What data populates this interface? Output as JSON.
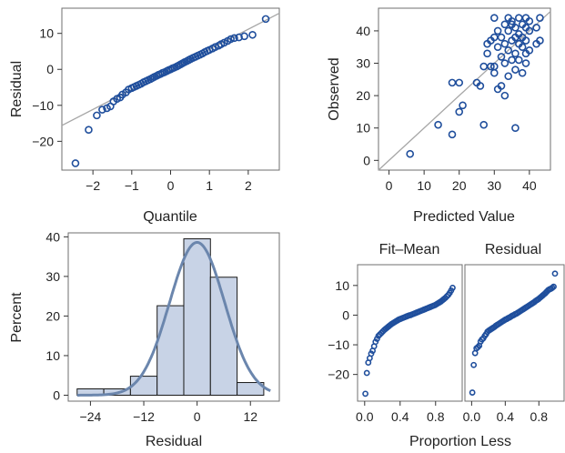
{
  "colors": {
    "marker": "#1f4e9c",
    "reference_line": "#a6a6a6",
    "bar_fill": "#c8d3e6",
    "density_curve": "#6b86ad"
  },
  "chart_data": [
    {
      "id": "qq",
      "type": "scatter",
      "xlabel": "Quantile",
      "ylabel": "Residual",
      "xlim": [
        -2.8,
        2.8
      ],
      "ylim": [
        -28,
        17
      ],
      "xticks": [
        -2,
        -1,
        0,
        1,
        2
      ],
      "yticks": [
        -20,
        -10,
        0,
        10
      ],
      "reference_line": [
        [
          -2.8,
          -15.6
        ],
        [
          2.8,
          15.6
        ]
      ],
      "points": [
        [
          -2.45,
          -26.1
        ],
        [
          -2.11,
          -16.8
        ],
        [
          -1.9,
          -12.8
        ],
        [
          -1.76,
          -11.2
        ],
        [
          -1.64,
          -10.8
        ],
        [
          -1.55,
          -10.3
        ],
        [
          -1.47,
          -8.9
        ],
        [
          -1.38,
          -8.2
        ],
        [
          -1.3,
          -7.8
        ],
        [
          -1.24,
          -7.0
        ],
        [
          -1.15,
          -6.4
        ],
        [
          -1.08,
          -5.6
        ],
        [
          -1.0,
          -5.2
        ],
        [
          -0.94,
          -4.9
        ],
        [
          -0.88,
          -4.6
        ],
        [
          -0.82,
          -4.3
        ],
        [
          -0.76,
          -4.0
        ],
        [
          -0.7,
          -3.6
        ],
        [
          -0.64,
          -3.3
        ],
        [
          -0.58,
          -3.0
        ],
        [
          -0.52,
          -2.7
        ],
        [
          -0.47,
          -2.4
        ],
        [
          -0.42,
          -2.1
        ],
        [
          -0.36,
          -1.8
        ],
        [
          -0.31,
          -1.5
        ],
        [
          -0.26,
          -1.3
        ],
        [
          -0.21,
          -1.0
        ],
        [
          -0.16,
          -0.8
        ],
        [
          -0.1,
          -0.5
        ],
        [
          -0.05,
          -0.2
        ],
        [
          0.0,
          0.0
        ],
        [
          0.05,
          0.3
        ],
        [
          0.1,
          0.5
        ],
        [
          0.16,
          0.8
        ],
        [
          0.21,
          1.1
        ],
        [
          0.26,
          1.4
        ],
        [
          0.31,
          1.7
        ],
        [
          0.36,
          2.0
        ],
        [
          0.42,
          2.3
        ],
        [
          0.47,
          2.6
        ],
        [
          0.52,
          2.9
        ],
        [
          0.58,
          3.2
        ],
        [
          0.64,
          3.5
        ],
        [
          0.7,
          3.8
        ],
        [
          0.76,
          4.1
        ],
        [
          0.82,
          4.4
        ],
        [
          0.88,
          4.8
        ],
        [
          0.94,
          5.1
        ],
        [
          1.0,
          5.4
        ],
        [
          1.08,
          5.8
        ],
        [
          1.15,
          6.2
        ],
        [
          1.24,
          6.6
        ],
        [
          1.3,
          7.0
        ],
        [
          1.38,
          7.4
        ],
        [
          1.47,
          7.9
        ],
        [
          1.55,
          8.4
        ],
        [
          1.64,
          8.7
        ],
        [
          1.76,
          8.9
        ],
        [
          1.9,
          9.2
        ],
        [
          2.11,
          9.6
        ],
        [
          2.45,
          14.0
        ]
      ]
    },
    {
      "id": "obs_pred",
      "type": "scatter",
      "xlabel": "Predicted Value",
      "ylabel": "Observed",
      "xlim": [
        -3,
        46
      ],
      "ylim": [
        -3,
        47
      ],
      "xticks": [
        0,
        10,
        20,
        30,
        40
      ],
      "yticks": [
        0,
        10,
        20,
        30,
        40
      ],
      "reference_line": [
        [
          -3,
          -3
        ],
        [
          46,
          46
        ]
      ],
      "points": [
        [
          6,
          2
        ],
        [
          14,
          11
        ],
        [
          18,
          8
        ],
        [
          18,
          24
        ],
        [
          20,
          15
        ],
        [
          20,
          24
        ],
        [
          21,
          17
        ],
        [
          25,
          24
        ],
        [
          26,
          23
        ],
        [
          27,
          11
        ],
        [
          27,
          29
        ],
        [
          28,
          33
        ],
        [
          28,
          36
        ],
        [
          29,
          29
        ],
        [
          29,
          37
        ],
        [
          30,
          38
        ],
        [
          30,
          27
        ],
        [
          30,
          29
        ],
        [
          30,
          44
        ],
        [
          31,
          22
        ],
        [
          31,
          35
        ],
        [
          31,
          40
        ],
        [
          32,
          23
        ],
        [
          32,
          32
        ],
        [
          32,
          38
        ],
        [
          33,
          20
        ],
        [
          33,
          30
        ],
        [
          33,
          36
        ],
        [
          33,
          42
        ],
        [
          34,
          26
        ],
        [
          34,
          34
        ],
        [
          34,
          40
        ],
        [
          34,
          44
        ],
        [
          35,
          31
        ],
        [
          35,
          37
        ],
        [
          35,
          42
        ],
        [
          35,
          43
        ],
        [
          36,
          10
        ],
        [
          36,
          28
        ],
        [
          36,
          33
        ],
        [
          36,
          38
        ],
        [
          36,
          41
        ],
        [
          37,
          31
        ],
        [
          37,
          36
        ],
        [
          37,
          39
        ],
        [
          37,
          44
        ],
        [
          38,
          27
        ],
        [
          38,
          35
        ],
        [
          38,
          38
        ],
        [
          38,
          42
        ],
        [
          39,
          30
        ],
        [
          39,
          33
        ],
        [
          39,
          37
        ],
        [
          39,
          41
        ],
        [
          39,
          44
        ],
        [
          40,
          34
        ],
        [
          40,
          40
        ],
        [
          40,
          43
        ],
        [
          42,
          36
        ],
        [
          42,
          41
        ],
        [
          43,
          37
        ],
        [
          43,
          44
        ]
      ]
    },
    {
      "id": "hist",
      "type": "bar",
      "xlabel": "Residual",
      "ylabel": "Percent",
      "xlim": [
        -29,
        18.5
      ],
      "ylim": [
        -1.5,
        41
      ],
      "xticks": [
        -24,
        -12,
        0,
        12
      ],
      "yticks": [
        0,
        10,
        20,
        30,
        40
      ],
      "bins": [
        {
          "start": -27,
          "end": -21,
          "value": 1.6
        },
        {
          "start": -21,
          "end": -15,
          "value": 1.6
        },
        {
          "start": -15,
          "end": -9,
          "value": 4.8
        },
        {
          "start": -9,
          "end": -3,
          "value": 22.6
        },
        {
          "start": -3,
          "end": 3,
          "value": 39.5
        },
        {
          "start": 3,
          "end": 9,
          "value": 29.8
        },
        {
          "start": 9,
          "end": 15,
          "value": 3.2
        }
      ],
      "density_curve": {
        "type": "normal",
        "mean": 0,
        "sd": 6.2,
        "peak": 38.6,
        "x_range": [
          -27,
          16.5
        ]
      }
    },
    {
      "id": "fit_mean",
      "type": "scatter",
      "title": "Fit–Mean",
      "xlabel": "",
      "ylabel": "",
      "xlim": [
        -0.08,
        1.1
      ],
      "ylim": [
        -29,
        17
      ],
      "xticks": [
        "0.0",
        "0.4",
        "0.8"
      ],
      "yticks": [
        -20,
        -10,
        0,
        10
      ],
      "values_sorted": [
        -26.5,
        -19.5,
        -16.0,
        -14.5,
        -13.0,
        -12.0,
        -10.5,
        -9.0,
        -8.0,
        -7.0,
        -6.5,
        -6.0,
        -5.5,
        -5.0,
        -4.6,
        -4.2,
        -3.8,
        -3.4,
        -3.0,
        -2.7,
        -2.4,
        -2.1,
        -1.8,
        -1.5,
        -1.3,
        -1.1,
        -0.9,
        -0.7,
        -0.5,
        -0.3,
        -0.1,
        0.0,
        0.2,
        0.4,
        0.6,
        0.8,
        1.0,
        1.2,
        1.4,
        1.6,
        1.8,
        2.0,
        2.2,
        2.4,
        2.6,
        2.8,
        3.0,
        3.2,
        3.4,
        3.7,
        4.0,
        4.3,
        4.6,
        5.0,
        5.4,
        5.8,
        6.3,
        6.8,
        7.5,
        8.3,
        9.2
      ]
    },
    {
      "id": "residual_spread",
      "type": "scatter",
      "title": "Residual",
      "xlabel": "",
      "ylabel": "",
      "xlim": [
        -0.08,
        1.1
      ],
      "ylim": [
        -29,
        17
      ],
      "xticks": [
        "0.0",
        "0.4",
        "0.8"
      ],
      "values_sorted": [
        -26.1,
        -16.8,
        -12.8,
        -11.2,
        -10.8,
        -10.3,
        -8.9,
        -8.2,
        -7.8,
        -7.0,
        -6.4,
        -5.6,
        -5.2,
        -4.9,
        -4.6,
        -4.3,
        -4.0,
        -3.6,
        -3.3,
        -3.0,
        -2.7,
        -2.4,
        -2.1,
        -1.8,
        -1.5,
        -1.3,
        -1.0,
        -0.8,
        -0.5,
        -0.2,
        0.0,
        0.3,
        0.5,
        0.8,
        1.1,
        1.4,
        1.7,
        2.0,
        2.3,
        2.6,
        2.9,
        3.2,
        3.5,
        3.8,
        4.1,
        4.4,
        4.8,
        5.1,
        5.4,
        5.8,
        6.2,
        6.6,
        7.0,
        7.4,
        7.9,
        8.4,
        8.7,
        8.9,
        9.2,
        9.6,
        14.0
      ],
      "shared_xlabel": "Proportion Less"
    }
  ]
}
